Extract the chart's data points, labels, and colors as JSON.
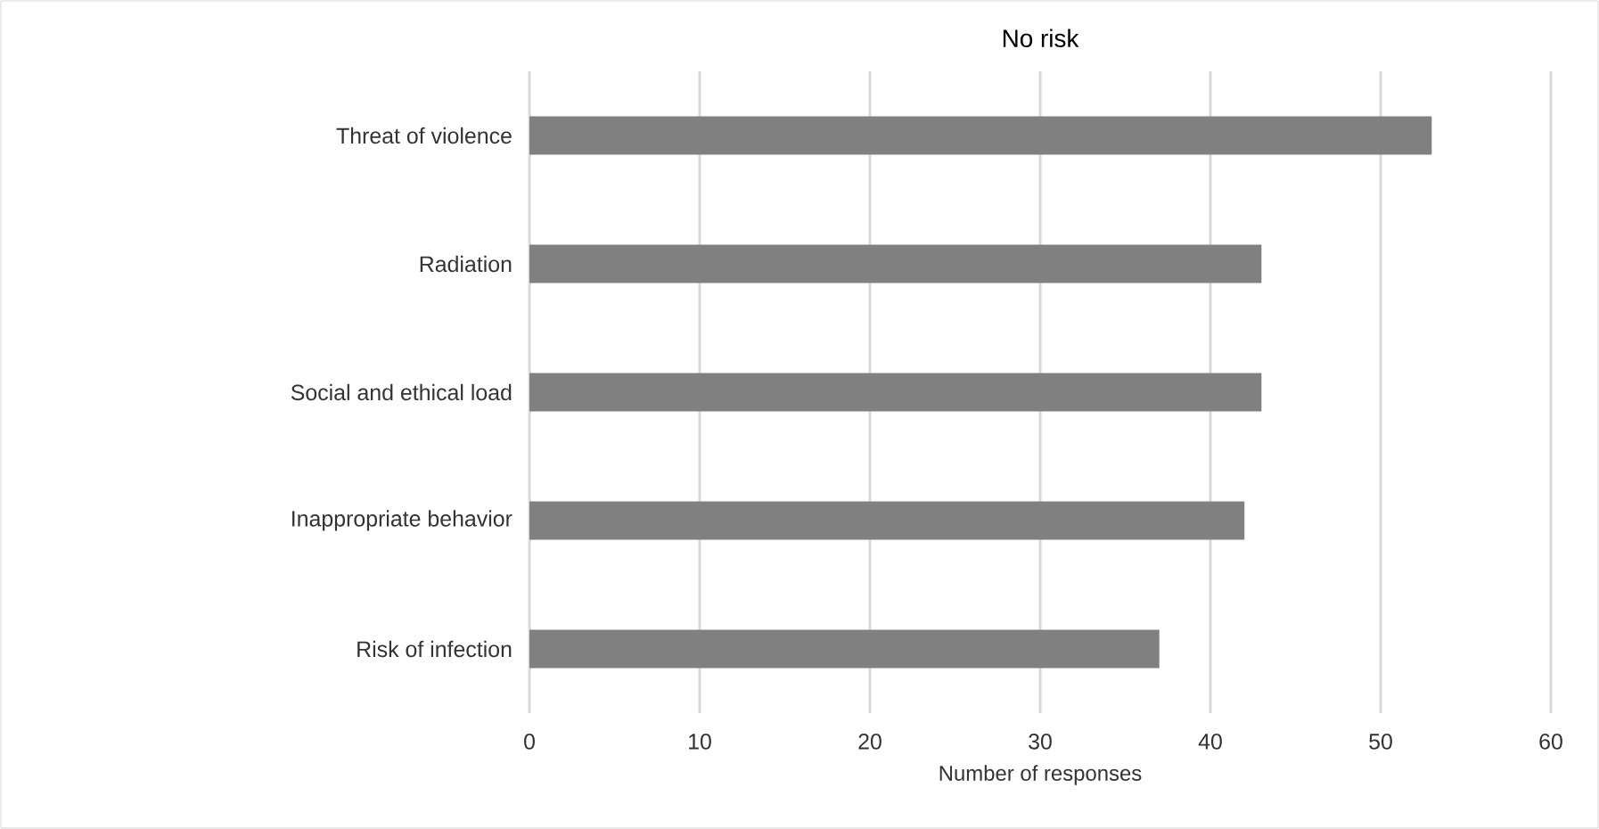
{
  "chart_data": {
    "type": "bar",
    "orientation": "horizontal",
    "title": "No risk",
    "xlabel": "Number of responses",
    "categories": [
      "Threat of violence",
      "Radiation",
      "Social and ethical load",
      "Inappropriate behavior",
      "Risk of infection"
    ],
    "values": [
      53,
      43,
      43,
      42,
      37
    ],
    "color": "#808080",
    "xlim": [
      0,
      60
    ],
    "xticks": [
      0,
      10,
      20,
      30,
      40,
      50,
      60
    ],
    "grid": "x"
  }
}
